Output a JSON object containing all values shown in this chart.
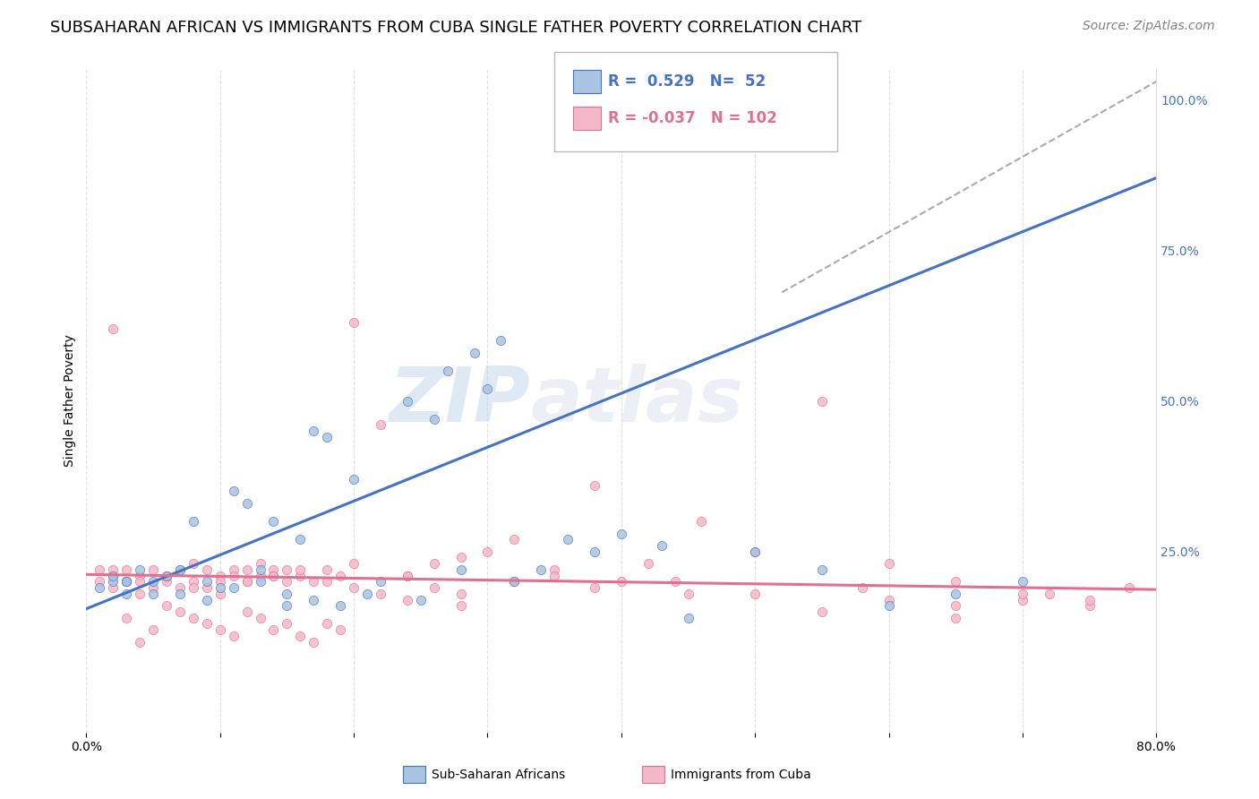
{
  "title": "SUBSAHARAN AFRICAN VS IMMIGRANTS FROM CUBA SINGLE FATHER POVERTY CORRELATION CHART",
  "source": "Source: ZipAtlas.com",
  "ylabel": "Single Father Poverty",
  "legend_label1": "Sub-Saharan Africans",
  "legend_label2": "Immigrants from Cuba",
  "xlim": [
    0.0,
    0.8
  ],
  "ylim": [
    -0.05,
    1.05
  ],
  "r1": 0.529,
  "n1": 52,
  "r2": -0.037,
  "n2": 102,
  "color1": "#a8c4e0",
  "color2": "#f4b8c8",
  "line_color1": "#4472c4",
  "line_color2": "#e07090",
  "diag_color": "#aaaaaa",
  "background_color": "#ffffff",
  "grid_color": "#dddddd",
  "watermark_zip": "ZIP",
  "watermark_atlas": "atlas",
  "title_fontsize": 13,
  "source_fontsize": 10,
  "axis_fontsize": 10,
  "blue_line": [
    0.0,
    0.155,
    0.8,
    0.87
  ],
  "pink_line": [
    0.0,
    0.212,
    0.8,
    0.187
  ],
  "diag_line": [
    0.52,
    0.68,
    0.8,
    1.03
  ],
  "scatter1_x": [
    0.02,
    0.03,
    0.04,
    0.01,
    0.02,
    0.03,
    0.05,
    0.06,
    0.07,
    0.08,
    0.09,
    0.1,
    0.11,
    0.12,
    0.13,
    0.14,
    0.15,
    0.16,
    0.17,
    0.18,
    0.2,
    0.22,
    0.24,
    0.26,
    0.28,
    0.3,
    0.32,
    0.34,
    0.36,
    0.38,
    0.4,
    0.43,
    0.45,
    0.5,
    0.55,
    0.6,
    0.65,
    0.7,
    0.03,
    0.05,
    0.07,
    0.09,
    0.11,
    0.13,
    0.15,
    0.17,
    0.19,
    0.21,
    0.25,
    0.27,
    0.29,
    0.31
  ],
  "scatter1_y": [
    0.2,
    0.18,
    0.22,
    0.19,
    0.21,
    0.2,
    0.2,
    0.21,
    0.22,
    0.3,
    0.2,
    0.19,
    0.35,
    0.33,
    0.22,
    0.3,
    0.18,
    0.27,
    0.45,
    0.44,
    0.37,
    0.2,
    0.5,
    0.47,
    0.22,
    0.52,
    0.2,
    0.22,
    0.27,
    0.25,
    0.28,
    0.26,
    0.14,
    0.25,
    0.22,
    0.16,
    0.18,
    0.2,
    0.2,
    0.18,
    0.18,
    0.17,
    0.19,
    0.2,
    0.16,
    0.17,
    0.16,
    0.18,
    0.17,
    0.55,
    0.58,
    0.6
  ],
  "scatter2_x": [
    0.01,
    0.01,
    0.02,
    0.02,
    0.03,
    0.03,
    0.04,
    0.04,
    0.05,
    0.05,
    0.06,
    0.06,
    0.07,
    0.07,
    0.08,
    0.08,
    0.09,
    0.09,
    0.1,
    0.1,
    0.11,
    0.11,
    0.12,
    0.12,
    0.13,
    0.13,
    0.14,
    0.14,
    0.15,
    0.15,
    0.16,
    0.17,
    0.18,
    0.19,
    0.2,
    0.22,
    0.24,
    0.26,
    0.28,
    0.3,
    0.32,
    0.35,
    0.38,
    0.42,
    0.46,
    0.5,
    0.55,
    0.6,
    0.65,
    0.7,
    0.75,
    0.02,
    0.03,
    0.04,
    0.05,
    0.06,
    0.07,
    0.08,
    0.09,
    0.1,
    0.11,
    0.12,
    0.13,
    0.14,
    0.15,
    0.16,
    0.17,
    0.18,
    0.19,
    0.2,
    0.22,
    0.24,
    0.26,
    0.28,
    0.35,
    0.4,
    0.45,
    0.55,
    0.6,
    0.65,
    0.7,
    0.75,
    0.02,
    0.04,
    0.06,
    0.08,
    0.1,
    0.12,
    0.14,
    0.16,
    0.18,
    0.2,
    0.24,
    0.28,
    0.32,
    0.38,
    0.44,
    0.5,
    0.58,
    0.65,
    0.72,
    0.78
  ],
  "scatter2_y": [
    0.2,
    0.22,
    0.19,
    0.21,
    0.2,
    0.22,
    0.18,
    0.21,
    0.19,
    0.22,
    0.2,
    0.21,
    0.19,
    0.22,
    0.2,
    0.23,
    0.19,
    0.22,
    0.21,
    0.2,
    0.22,
    0.21,
    0.2,
    0.22,
    0.21,
    0.23,
    0.22,
    0.21,
    0.2,
    0.22,
    0.21,
    0.2,
    0.22,
    0.21,
    0.63,
    0.46,
    0.21,
    0.23,
    0.24,
    0.25,
    0.27,
    0.22,
    0.36,
    0.23,
    0.3,
    0.25,
    0.5,
    0.23,
    0.14,
    0.17,
    0.16,
    0.62,
    0.14,
    0.1,
    0.12,
    0.16,
    0.15,
    0.14,
    0.13,
    0.12,
    0.11,
    0.15,
    0.14,
    0.12,
    0.13,
    0.11,
    0.1,
    0.13,
    0.12,
    0.23,
    0.18,
    0.17,
    0.19,
    0.16,
    0.21,
    0.2,
    0.18,
    0.15,
    0.17,
    0.16,
    0.18,
    0.17,
    0.22,
    0.2,
    0.21,
    0.19,
    0.18,
    0.2,
    0.21,
    0.22,
    0.2,
    0.19,
    0.21,
    0.18,
    0.2,
    0.19,
    0.2,
    0.18,
    0.19,
    0.2,
    0.18,
    0.19
  ]
}
